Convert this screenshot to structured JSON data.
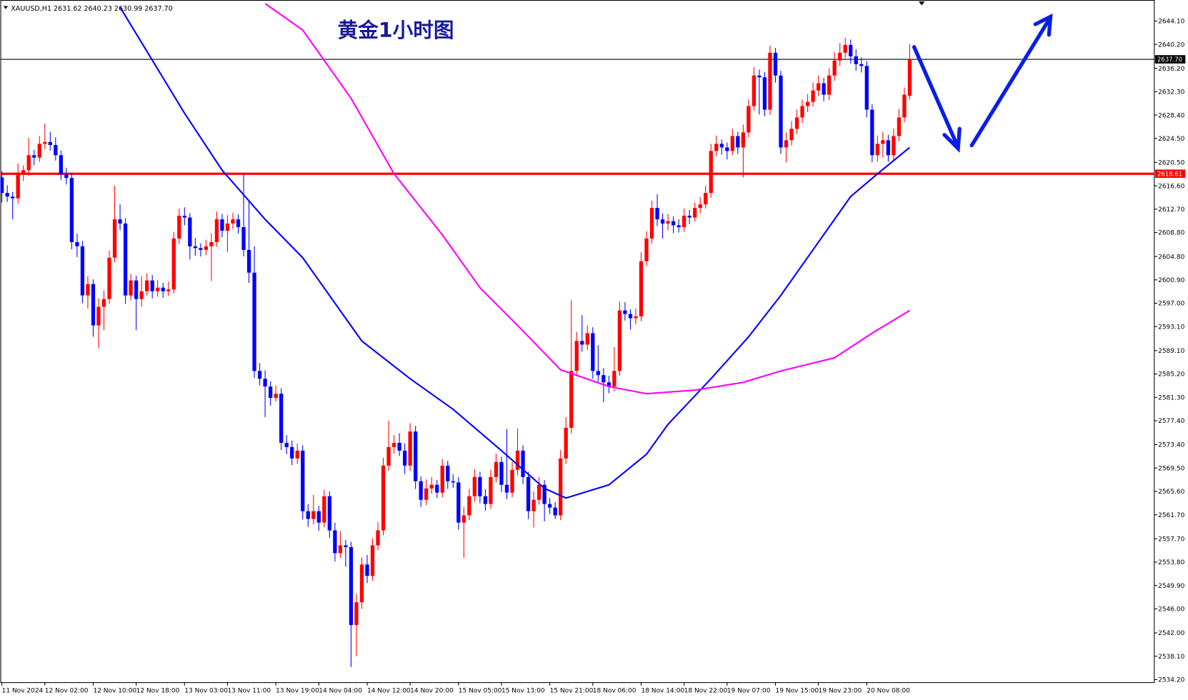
{
  "chart_data": {
    "type": "candlestick",
    "title": "黄金1小时图",
    "info_label": "XAUUSD,H1  2631.62 2640.23 2630.99 2637.70",
    "up_color": "#ff0000",
    "down_color": "#0000ff",
    "ylim": [
      2533.7,
      2647.6
    ],
    "yticks": [
      {
        "value": 2644.1,
        "label": "2644.10"
      },
      {
        "value": 2640.2,
        "label": "2640.20"
      },
      {
        "value": 2636.2,
        "label": "2636.20"
      },
      {
        "value": 2632.3,
        "label": "2632.30"
      },
      {
        "value": 2628.4,
        "label": "2628.40"
      },
      {
        "value": 2624.5,
        "label": "2624.50"
      },
      {
        "value": 2620.5,
        "label": "2620.50"
      },
      {
        "value": 2616.6,
        "label": "2616.60"
      },
      {
        "value": 2612.7,
        "label": "2612.70"
      },
      {
        "value": 2608.8,
        "label": "2608.80"
      },
      {
        "value": 2604.8,
        "label": "2604.80"
      },
      {
        "value": 2600.9,
        "label": "2600.90"
      },
      {
        "value": 2597,
        "label": "2597.00"
      },
      {
        "value": 2593.1,
        "label": "2593.10"
      },
      {
        "value": 2589.1,
        "label": "2589.10"
      },
      {
        "value": 2585.2,
        "label": "2585.20"
      },
      {
        "value": 2581.3,
        "label": "2581.30"
      },
      {
        "value": 2577.4,
        "label": "2577.40"
      },
      {
        "value": 2573.4,
        "label": "2573.40"
      },
      {
        "value": 2569.5,
        "label": "2569.50"
      },
      {
        "value": 2565.6,
        "label": "2565.60"
      },
      {
        "value": 2561.7,
        "label": "2561.70"
      },
      {
        "value": 2557.7,
        "label": "2557.70"
      },
      {
        "value": 2553.8,
        "label": "2553.80"
      },
      {
        "value": 2549.9,
        "label": "2549.90"
      },
      {
        "value": 2546,
        "label": "2546.00"
      },
      {
        "value": 2542,
        "label": "2542.00"
      },
      {
        "value": 2538.1,
        "label": "2538.10"
      },
      {
        "value": 2534.2,
        "label": "2534.20"
      }
    ],
    "xticks": [
      {
        "value": 0,
        "label": "11 Nov 2024"
      },
      {
        "value": 8,
        "label": "12 Nov 02:00"
      },
      {
        "value": 17,
        "label": "12 Nov 10:00"
      },
      {
        "value": 25,
        "label": "12 Nov 18:00"
      },
      {
        "value": 34,
        "label": "13 Nov 03:00"
      },
      {
        "value": 42,
        "label": "13 Nov 11:00"
      },
      {
        "value": 51,
        "label": "13 Nov 19:00"
      },
      {
        "value": 59,
        "label": "14 Nov 04:00"
      },
      {
        "value": 68,
        "label": "14 Nov 12:00"
      },
      {
        "value": 76,
        "label": "14 Nov 20:00"
      },
      {
        "value": 85,
        "label": "15 Nov 05:00"
      },
      {
        "value": 93,
        "label": "15 Nov 13:00"
      },
      {
        "value": 102,
        "label": "15 Nov 21:00"
      },
      {
        "value": 110,
        "label": "18 Nov 06:00"
      },
      {
        "value": 119,
        "label": "18 Nov 14:00"
      },
      {
        "value": 127,
        "label": "18 Nov 22:00"
      },
      {
        "value": 135,
        "label": "19 Nov 07:00"
      },
      {
        "value": 144,
        "label": "19 Nov 15:00"
      },
      {
        "value": 152,
        "label": "19 Nov 23:00"
      },
      {
        "value": 161,
        "label": "20 Nov 08:00"
      }
    ],
    "hlines": [
      {
        "value": 2637.7,
        "label": "2637.70",
        "color": "#000000"
      },
      {
        "value": 2618.61,
        "label": "2618.61",
        "color": "#ff0000"
      }
    ],
    "lines": [
      {
        "color": "#0000ff",
        "x": [
          22,
          34,
          41,
          49,
          56,
          67,
          76,
          84,
          93,
          101,
          105,
          113,
          120,
          124,
          132,
          139,
          145,
          152,
          158,
          163,
          169
        ],
        "values": [
          2646.4,
          2628.7,
          2619.2,
          2611.0,
          2604.6,
          2590.7,
          2584.4,
          2579.3,
          2572.4,
          2566.1,
          2564.5,
          2566.7,
          2571.8,
          2576.8,
          2584.4,
          2591.4,
          2598.3,
          2607.2,
          2614.8,
          2618.6,
          2623.0
        ]
      },
      {
        "color": "#ff00ff",
        "x": [
          49,
          56,
          65,
          73,
          82,
          89,
          96,
          104,
          113,
          120,
          129,
          138,
          145,
          155,
          162,
          169
        ],
        "values": [
          2647.0,
          2642.6,
          2631.2,
          2618.6,
          2608.4,
          2599.6,
          2593.3,
          2585.9,
          2583.1,
          2581.9,
          2582.5,
          2583.8,
          2585.7,
          2587.9,
          2592.0,
          2595.8
        ]
      }
    ],
    "ohlc": [
      [
        2618.0,
        2619.0,
        2613.8,
        2615.4
      ],
      [
        2615.4,
        2616.7,
        2613.9,
        2614.8
      ],
      [
        2614.8,
        2615.6,
        2611.0,
        2614.5
      ],
      [
        2614.5,
        2620.3,
        2613.6,
        2618.5
      ],
      [
        2618.5,
        2620.0,
        2617.4,
        2619.2
      ],
      [
        2619.2,
        2624.6,
        2618.3,
        2621.7
      ],
      [
        2621.7,
        2622.6,
        2620.0,
        2621.3
      ],
      [
        2621.3,
        2624.9,
        2620.6,
        2623.6
      ],
      [
        2623.6,
        2627.0,
        2622.7,
        2623.9
      ],
      [
        2623.9,
        2625.6,
        2622.5,
        2623.4
      ],
      [
        2623.4,
        2624.7,
        2620.8,
        2621.7
      ],
      [
        2621.7,
        2622.5,
        2617.6,
        2618.5
      ],
      [
        2618.5,
        2619.6,
        2616.8,
        2617.9
      ],
      [
        2617.9,
        2618.8,
        2606.0,
        2607.2
      ],
      [
        2607.2,
        2608.6,
        2604.7,
        2606.5
      ],
      [
        2606.5,
        2607.4,
        2597.0,
        2598.3
      ],
      [
        2598.3,
        2601.5,
        2596.1,
        2600.2
      ],
      [
        2600.2,
        2601.0,
        2591.4,
        2593.3
      ],
      [
        2593.3,
        2597.8,
        2589.5,
        2596.4
      ],
      [
        2596.4,
        2599.1,
        2592.5,
        2597.7
      ],
      [
        2597.7,
        2605.8,
        2596.9,
        2604.6
      ],
      [
        2604.6,
        2616.6,
        2603.8,
        2611.0
      ],
      [
        2611.0,
        2613.5,
        2609.2,
        2610.3
      ],
      [
        2610.3,
        2611.2,
        2596.9,
        2598.3
      ],
      [
        2598.3,
        2601.9,
        2597.5,
        2600.8
      ],
      [
        2600.8,
        2601.6,
        2592.5,
        2597.7
      ],
      [
        2597.7,
        2601.5,
        2596.4,
        2599.0
      ],
      [
        2599.0,
        2602.0,
        2598.3,
        2600.8
      ],
      [
        2600.8,
        2601.7,
        2597.8,
        2599.0
      ],
      [
        2599.0,
        2600.9,
        2598.1,
        2599.6
      ],
      [
        2599.6,
        2600.4,
        2597.9,
        2599.0
      ],
      [
        2599.0,
        2600.6,
        2598.2,
        2599.3
      ],
      [
        2599.3,
        2608.9,
        2598.6,
        2607.8
      ],
      [
        2607.8,
        2612.8,
        2606.9,
        2611.6
      ],
      [
        2611.6,
        2613.0,
        2610.0,
        2611.3
      ],
      [
        2611.3,
        2612.0,
        2604.3,
        2606.5
      ],
      [
        2606.5,
        2607.9,
        2604.9,
        2606.2
      ],
      [
        2606.2,
        2607.0,
        2604.8,
        2605.9
      ],
      [
        2605.9,
        2607.6,
        2605.0,
        2606.5
      ],
      [
        2606.5,
        2608.7,
        2600.7,
        2607.2
      ],
      [
        2607.2,
        2612.3,
        2606.4,
        2611.0
      ],
      [
        2611.0,
        2611.9,
        2608.0,
        2609.1
      ],
      [
        2609.1,
        2611.7,
        2605.5,
        2610.3
      ],
      [
        2610.3,
        2612.1,
        2609.4,
        2611.0
      ],
      [
        2611.0,
        2611.8,
        2608.6,
        2609.7
      ],
      [
        2609.7,
        2618.6,
        2604.8,
        2605.9
      ],
      [
        2605.9,
        2614.0,
        2600.4,
        2602.1
      ],
      [
        2602.1,
        2606.5,
        2584.5,
        2585.7
      ],
      [
        2585.7,
        2587.0,
        2583.3,
        2584.4
      ],
      [
        2584.4,
        2585.8,
        2578.0,
        2583.1
      ],
      [
        2583.1,
        2584.0,
        2579.9,
        2581.2
      ],
      [
        2581.2,
        2583.3,
        2580.6,
        2581.9
      ],
      [
        2581.9,
        2582.8,
        2572.5,
        2573.7
      ],
      [
        2573.7,
        2575.0,
        2571.8,
        2573.0
      ],
      [
        2573.0,
        2574.1,
        2570.0,
        2571.1
      ],
      [
        2571.1,
        2573.6,
        2570.2,
        2572.4
      ],
      [
        2572.4,
        2573.3,
        2560.9,
        2562.3
      ],
      [
        2562.3,
        2563.5,
        2559.7,
        2561.0
      ],
      [
        2561.0,
        2565.0,
        2560.1,
        2562.3
      ],
      [
        2562.3,
        2563.2,
        2559.0,
        2560.4
      ],
      [
        2560.4,
        2565.9,
        2559.6,
        2564.8
      ],
      [
        2564.8,
        2565.6,
        2557.8,
        2559.1
      ],
      [
        2559.1,
        2560.4,
        2553.9,
        2555.3
      ],
      [
        2555.3,
        2559.0,
        2554.5,
        2556.6
      ],
      [
        2556.6,
        2557.5,
        2553.0,
        2556.3
      ],
      [
        2556.3,
        2557.2,
        2536.3,
        2543.3
      ],
      [
        2543.3,
        2548.5,
        2538.1,
        2547.1
      ],
      [
        2547.1,
        2554.6,
        2546.0,
        2553.4
      ],
      [
        2553.4,
        2555.0,
        2550.3,
        2551.5
      ],
      [
        2551.5,
        2557.8,
        2550.7,
        2556.6
      ],
      [
        2556.6,
        2560.5,
        2555.8,
        2559.1
      ],
      [
        2559.1,
        2571.2,
        2558.3,
        2569.9
      ],
      [
        2569.9,
        2577.4,
        2569.0,
        2573.0
      ],
      [
        2573.0,
        2575.0,
        2571.9,
        2573.7
      ],
      [
        2573.7,
        2575.3,
        2571.5,
        2572.4
      ],
      [
        2572.4,
        2573.6,
        2568.5,
        2569.9
      ],
      [
        2569.9,
        2577.0,
        2569.0,
        2575.6
      ],
      [
        2575.6,
        2576.5,
        2566.0,
        2567.3
      ],
      [
        2567.3,
        2568.1,
        2563.0,
        2564.2
      ],
      [
        2564.2,
        2567.6,
        2563.3,
        2566.1
      ],
      [
        2566.1,
        2568.0,
        2565.2,
        2566.7
      ],
      [
        2566.7,
        2567.5,
        2564.5,
        2565.4
      ],
      [
        2565.4,
        2571.0,
        2564.6,
        2569.9
      ],
      [
        2569.9,
        2570.7,
        2566.0,
        2567.3
      ],
      [
        2567.3,
        2568.5,
        2566.2,
        2567.1
      ],
      [
        2567.1,
        2568.0,
        2559.2,
        2560.4
      ],
      [
        2560.4,
        2563.0,
        2554.5,
        2561.6
      ],
      [
        2561.6,
        2566.0,
        2560.8,
        2564.8
      ],
      [
        2564.8,
        2569.3,
        2563.9,
        2568.0
      ],
      [
        2568.0,
        2568.9,
        2563.6,
        2564.8
      ],
      [
        2564.8,
        2566.0,
        2562.4,
        2563.5
      ],
      [
        2563.5,
        2569.2,
        2562.7,
        2568.0
      ],
      [
        2568.0,
        2571.9,
        2567.1,
        2570.5
      ],
      [
        2570.5,
        2571.4,
        2565.5,
        2566.7
      ],
      [
        2566.7,
        2576.0,
        2564.3,
        2565.4
      ],
      [
        2565.4,
        2570.5,
        2564.6,
        2569.2
      ],
      [
        2569.2,
        2576.1,
        2568.3,
        2572.4
      ],
      [
        2572.4,
        2573.3,
        2566.8,
        2568.0
      ],
      [
        2568.0,
        2568.9,
        2561.0,
        2562.3
      ],
      [
        2562.3,
        2565.6,
        2559.6,
        2564.2
      ],
      [
        2564.2,
        2568.0,
        2563.4,
        2566.7
      ],
      [
        2566.7,
        2567.5,
        2560.6,
        2563.5
      ],
      [
        2563.5,
        2564.5,
        2561.8,
        2562.9
      ],
      [
        2562.9,
        2563.8,
        2561.0,
        2561.6
      ],
      [
        2561.6,
        2572.5,
        2560.8,
        2571.1
      ],
      [
        2571.1,
        2578.0,
        2570.2,
        2576.2
      ],
      [
        2576.2,
        2597.5,
        2575.3,
        2585.7
      ],
      [
        2585.7,
        2592.2,
        2584.8,
        2590.7
      ],
      [
        2590.7,
        2595.0,
        2588.9,
        2590.1
      ],
      [
        2590.1,
        2593.3,
        2589.2,
        2592.0
      ],
      [
        2592.0,
        2593.0,
        2584.4,
        2585.7
      ],
      [
        2585.7,
        2590.0,
        2583.9,
        2585.0
      ],
      [
        2585.0,
        2586.2,
        2580.5,
        2583.8
      ],
      [
        2583.8,
        2584.9,
        2582.0,
        2583.1
      ],
      [
        2583.1,
        2589.7,
        2582.3,
        2585.7
      ],
      [
        2585.7,
        2597.3,
        2584.9,
        2595.8
      ],
      [
        2595.8,
        2597.2,
        2594.1,
        2595.2
      ],
      [
        2595.2,
        2596.0,
        2592.6,
        2594.5
      ],
      [
        2594.5,
        2596.1,
        2593.5,
        2594.8
      ],
      [
        2594.8,
        2605.5,
        2594.0,
        2604.0
      ],
      [
        2604.0,
        2609.0,
        2603.2,
        2607.8
      ],
      [
        2607.8,
        2614.1,
        2607.0,
        2612.9
      ],
      [
        2612.9,
        2615.2,
        2609.9,
        2611.0
      ],
      [
        2611.0,
        2612.0,
        2607.8,
        2610.3
      ],
      [
        2610.3,
        2611.9,
        2609.2,
        2610.7
      ],
      [
        2610.7,
        2611.5,
        2608.7,
        2610.0
      ],
      [
        2610.0,
        2611.0,
        2608.8,
        2609.7
      ],
      [
        2609.7,
        2612.8,
        2608.9,
        2611.6
      ],
      [
        2611.6,
        2612.6,
        2610.2,
        2611.3
      ],
      [
        2611.3,
        2613.8,
        2610.6,
        2612.9
      ],
      [
        2612.9,
        2614.7,
        2612.0,
        2613.5
      ],
      [
        2613.5,
        2616.6,
        2612.8,
        2615.4
      ],
      [
        2615.4,
        2623.6,
        2614.6,
        2622.4
      ],
      [
        2622.4,
        2625.0,
        2621.5,
        2623.6
      ],
      [
        2623.6,
        2624.3,
        2621.8,
        2623.0
      ],
      [
        2623.0,
        2623.8,
        2621.0,
        2622.4
      ],
      [
        2622.4,
        2626.1,
        2621.7,
        2624.9
      ],
      [
        2624.9,
        2625.6,
        2621.9,
        2623.0
      ],
      [
        2623.0,
        2626.8,
        2618.0,
        2625.5
      ],
      [
        2625.5,
        2631.0,
        2624.7,
        2629.9
      ],
      [
        2629.9,
        2636.4,
        2629.1,
        2635.0
      ],
      [
        2635.0,
        2636.0,
        2628.5,
        2634.7
      ],
      [
        2634.7,
        2635.6,
        2628.2,
        2629.3
      ],
      [
        2629.3,
        2640.0,
        2628.4,
        2638.8
      ],
      [
        2638.8,
        2639.6,
        2633.8,
        2635.0
      ],
      [
        2635.0,
        2635.8,
        2621.9,
        2623.0
      ],
      [
        2623.0,
        2625.5,
        2620.5,
        2624.2
      ],
      [
        2624.2,
        2627.4,
        2623.3,
        2626.1
      ],
      [
        2626.1,
        2629.3,
        2625.2,
        2628.0
      ],
      [
        2628.0,
        2631.0,
        2627.1,
        2629.9
      ],
      [
        2629.9,
        2631.9,
        2628.9,
        2630.6
      ],
      [
        2630.6,
        2633.8,
        2629.8,
        2632.5
      ],
      [
        2632.5,
        2635.0,
        2631.6,
        2633.7
      ],
      [
        2633.7,
        2634.6,
        2630.7,
        2631.8
      ],
      [
        2631.8,
        2636.2,
        2630.9,
        2635.0
      ],
      [
        2635.0,
        2638.9,
        2634.1,
        2637.5
      ],
      [
        2637.5,
        2640.4,
        2636.6,
        2638.8
      ],
      [
        2638.8,
        2641.3,
        2637.9,
        2640.1
      ],
      [
        2640.1,
        2641.0,
        2637.0,
        2638.2
      ],
      [
        2638.2,
        2639.4,
        2635.8,
        2636.9
      ],
      [
        2636.9,
        2638.0,
        2635.5,
        2636.6
      ],
      [
        2636.6,
        2637.4,
        2628.0,
        2629.3
      ],
      [
        2629.3,
        2630.2,
        2620.5,
        2621.7
      ],
      [
        2621.7,
        2625.0,
        2620.6,
        2623.6
      ],
      [
        2623.6,
        2625.6,
        2621.3,
        2624.2
      ],
      [
        2624.2,
        2625.1,
        2620.6,
        2621.7
      ],
      [
        2621.7,
        2626.2,
        2620.9,
        2624.9
      ],
      [
        2624.9,
        2629.4,
        2624.0,
        2628.0
      ],
      [
        2628.0,
        2633.0,
        2627.2,
        2631.8
      ],
      [
        2631.62,
        2640.23,
        2630.99,
        2637.7
      ]
    ]
  }
}
